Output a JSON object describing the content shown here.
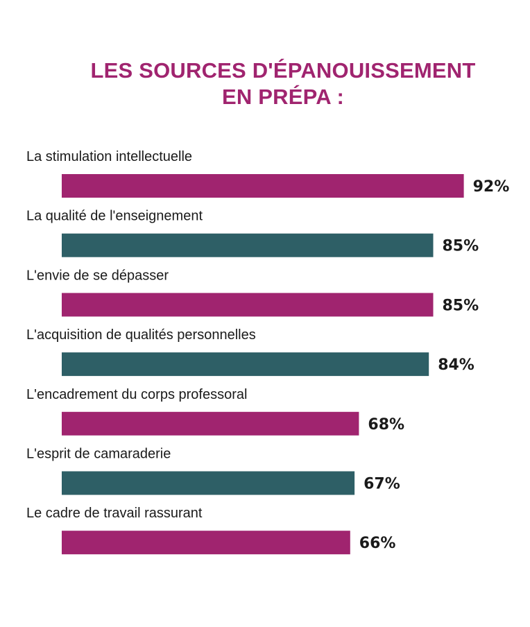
{
  "chart_data": {
    "type": "bar",
    "orientation": "horizontal",
    "title_lines": [
      "LES SOURCES D'ÉPANOUISSEMENT",
      "EN PRÉPA :"
    ],
    "categories": [
      "La stimulation intellectuelle",
      "La qualité de l'enseignement",
      "L'envie de se dépasser",
      "L'acquisition de qualités personnelles",
      "L'encadrement du corps professoral",
      "L'esprit de camaraderie",
      "Le cadre de travail rassurant"
    ],
    "values": [
      92,
      85,
      85,
      84,
      68,
      67,
      66
    ],
    "value_labels": [
      "92%",
      "85%",
      "85%",
      "84%",
      "68%",
      "67%",
      "66%"
    ],
    "unit": "%",
    "xlim": [
      0,
      100
    ],
    "grid": false,
    "legend": "none",
    "colors": {
      "title": "#A0246F",
      "bar_alternate": [
        "#A0246F",
        "#2E5F66"
      ],
      "text": "#1a1a1a"
    }
  }
}
